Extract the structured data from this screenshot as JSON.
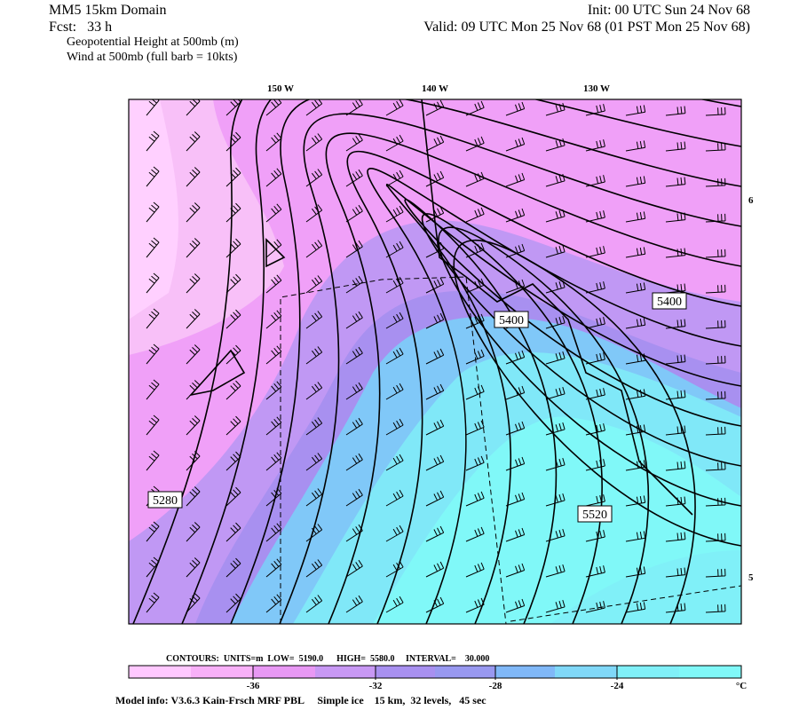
{
  "header": {
    "domain": "MM5 15km Domain",
    "init": "Init: 00 UTC Sun 24 Nov 68",
    "fcst": "Fcst:   33 h",
    "valid": "Valid: 09 UTC Mon 25 Nov 68 (01 PST Mon 25 Nov 68)",
    "field1": "Geopotential Height at 500mb (m)",
    "field2": "Wind at 500mb (full barb = 10kts)"
  },
  "map": {
    "lon_labels": [
      "150 W",
      "140 W",
      "130 W"
    ],
    "lat_labels": [
      "6",
      "5"
    ],
    "contour_labels": [
      "5400",
      "5400",
      "5280",
      "5520"
    ]
  },
  "colorbar": {
    "contours": "CONTOURS:  UNITS=m  LOW=  5190.0      HIGH=  5580.0     INTERVAL=    30.000",
    "ticks": [
      "-36",
      "-32",
      "-28",
      "-24"
    ],
    "unit": "°C"
  },
  "footer": "Model info: V3.6.3 Kain-Frsch MRF PBL     Simple ice    15 km,  32 levels,   45 sec"
}
